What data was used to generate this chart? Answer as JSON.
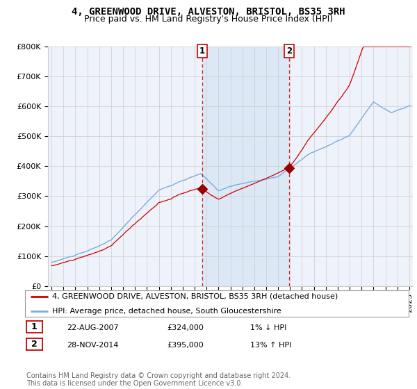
{
  "title": "4, GREENWOOD DRIVE, ALVESTON, BRISTOL, BS35 3RH",
  "subtitle": "Price paid vs. HM Land Registry's House Price Index (HPI)",
  "ylim": [
    0,
    800000
  ],
  "yticks": [
    0,
    100000,
    200000,
    300000,
    400000,
    500000,
    600000,
    700000,
    800000
  ],
  "ytick_labels": [
    "£0",
    "£100K",
    "£200K",
    "£300K",
    "£400K",
    "£500K",
    "£600K",
    "£700K",
    "£800K"
  ],
  "xlim_start": 1994.7,
  "xlim_end": 2025.3,
  "transaction1_date": 2007.64,
  "transaction1_price": 324000,
  "transaction1_label": "22-AUG-2007",
  "transaction1_price_label": "£324,000",
  "transaction1_pct": "1% ↓ HPI",
  "transaction2_date": 2014.91,
  "transaction2_price": 395000,
  "transaction2_label": "28-NOV-2014",
  "transaction2_price_label": "£395,000",
  "transaction2_pct": "13% ↑ HPI",
  "legend_line1": "4, GREENWOOD DRIVE, ALVESTON, BRISTOL, BS35 3RH (detached house)",
  "legend_line2": "HPI: Average price, detached house, South Gloucestershire",
  "footnote": "Contains HM Land Registry data © Crown copyright and database right 2024.\nThis data is licensed under the Open Government Licence v3.0.",
  "line_color_red": "#cc0000",
  "line_color_blue": "#7aaddb",
  "shade_color": "#dce8f5",
  "background_color": "#eef2fa",
  "grid_color": "#cccccc",
  "vline_color": "#cc0000",
  "marker_color_red": "#990000",
  "title_fontsize": 10,
  "subtitle_fontsize": 9,
  "tick_fontsize": 8,
  "legend_fontsize": 8,
  "footnote_fontsize": 7
}
